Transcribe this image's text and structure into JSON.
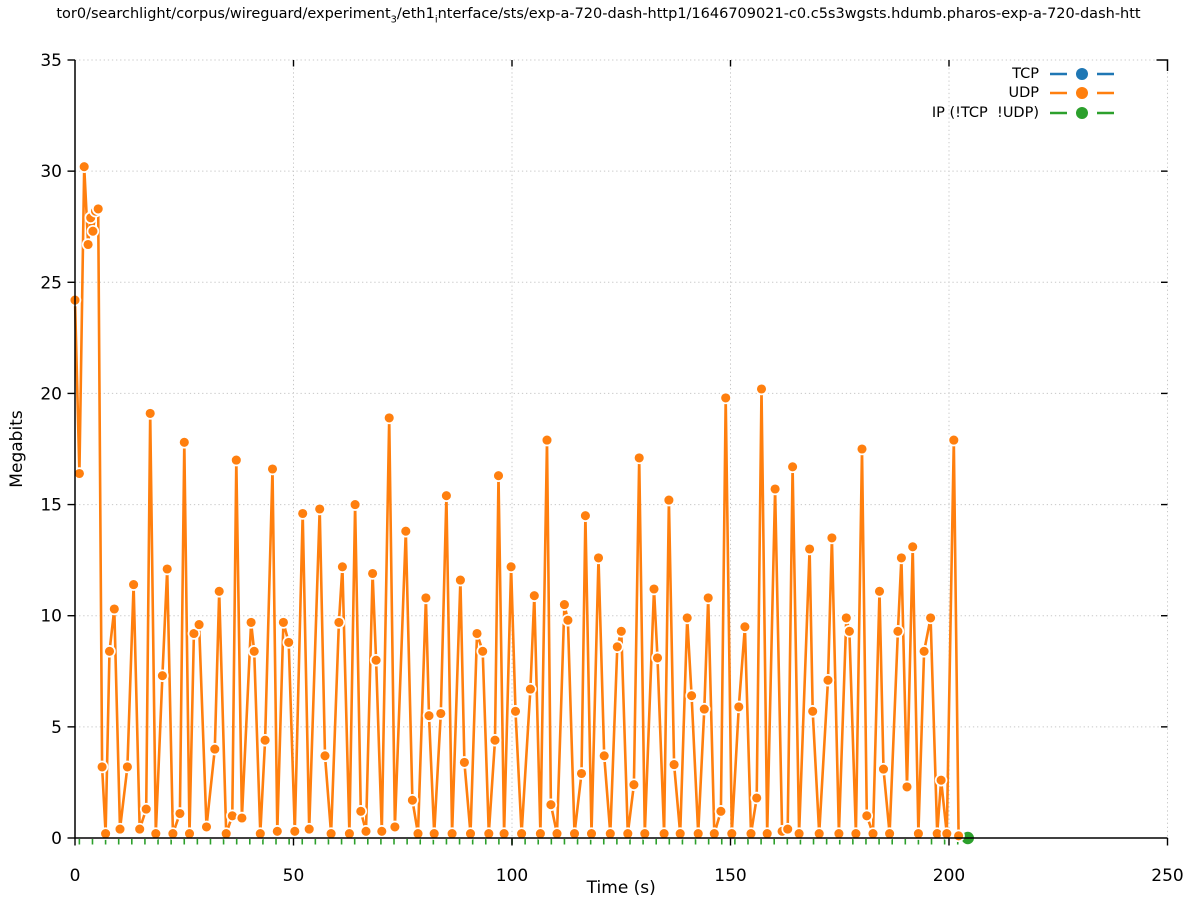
{
  "title": {
    "segments": [
      {
        "text": "tor0/searchlight/corpus/wireguard/experiment"
      },
      {
        "text": "3"
      },
      {
        "text": "/eth1"
      },
      {
        "text": "i"
      },
      {
        "text": "nterface/sts/exp-a-720-dash-http1/1646709021-c0.c5s3wgsts.hdumb.pharos-exp-a-720-dash-htt"
      }
    ]
  },
  "legend": {
    "items": [
      {
        "label": "TCP",
        "color": "#1f77b4"
      },
      {
        "label": "UDP",
        "color": "#ff7f0e"
      },
      {
        "label": "IP (!TCP  !UDP)",
        "color": "#2ca02c"
      }
    ]
  },
  "axes": {
    "xlabel": "Time (s)",
    "ylabel": "Megabits"
  },
  "colors": {
    "background": "#ffffff",
    "grid": "#c8c8c8",
    "axis": "#000000",
    "tcp": "#1f77b4",
    "udp": "#ff7f0e",
    "ip": "#2ca02c"
  },
  "chart_data": {
    "type": "line",
    "title": "tor0/searchlight/corpus/wireguard/experiment_3/eth1_interface/sts/exp-a-720-dash-http1/1646709021-c0.c5s3wgsts.hdumb.pharos-exp-a-720-dash-htt",
    "xlabel": "Time (s)",
    "ylabel": "Megabits",
    "xlim": [
      0,
      250
    ],
    "ylim": [
      0,
      35
    ],
    "xticks": [
      0,
      50,
      100,
      150,
      200,
      250
    ],
    "yticks": [
      0,
      5,
      10,
      15,
      20,
      25,
      30,
      35
    ],
    "grid": "dotted-major-both",
    "legend_position": "top-right",
    "series": [
      {
        "name": "TCP",
        "color": "#1f77b4",
        "style": "linespoints",
        "points": []
      },
      {
        "name": "UDP",
        "color": "#ff7f0e",
        "style": "linespoints",
        "points": [
          [
            0,
            24.2
          ],
          [
            1.0,
            16.4
          ],
          [
            2.1,
            30.2
          ],
          [
            3.0,
            26.7
          ],
          [
            3.6,
            27.9
          ],
          [
            4.1,
            27.3
          ],
          [
            4.7,
            28.2
          ],
          [
            5.3,
            28.3
          ],
          [
            6.2,
            3.2
          ],
          [
            7.0,
            0.2
          ],
          [
            7.9,
            8.4
          ],
          [
            9.0,
            10.3
          ],
          [
            10.3,
            0.4
          ],
          [
            12.0,
            3.2
          ],
          [
            13.4,
            11.4
          ],
          [
            14.8,
            0.4
          ],
          [
            16.3,
            1.3
          ],
          [
            17.2,
            19.1
          ],
          [
            18.5,
            0.2
          ],
          [
            20.0,
            7.3
          ],
          [
            21.1,
            12.1
          ],
          [
            22.4,
            0.2
          ],
          [
            24.0,
            1.1
          ],
          [
            25.0,
            17.8
          ],
          [
            26.2,
            0.2
          ],
          [
            27.2,
            9.2
          ],
          [
            28.4,
            9.6
          ],
          [
            30.1,
            0.5
          ],
          [
            32.0,
            4.0
          ],
          [
            33.0,
            11.1
          ],
          [
            34.6,
            0.2
          ],
          [
            36.0,
            1.0
          ],
          [
            36.9,
            17.0
          ],
          [
            38.2,
            0.9
          ],
          [
            40.3,
            9.7
          ],
          [
            41.0,
            8.4
          ],
          [
            42.4,
            0.2
          ],
          [
            43.5,
            4.4
          ],
          [
            45.2,
            16.6
          ],
          [
            46.3,
            0.3
          ],
          [
            47.7,
            9.7
          ],
          [
            48.9,
            8.8
          ],
          [
            50.3,
            0.3
          ],
          [
            52.1,
            14.6
          ],
          [
            53.6,
            0.4
          ],
          [
            56.0,
            14.8
          ],
          [
            57.2,
            3.7
          ],
          [
            58.6,
            0.2
          ],
          [
            60.4,
            9.7
          ],
          [
            61.2,
            12.2
          ],
          [
            62.8,
            0.2
          ],
          [
            64.1,
            15.0
          ],
          [
            65.4,
            1.2
          ],
          [
            66.6,
            0.3
          ],
          [
            68.1,
            11.9
          ],
          [
            68.9,
            8.0
          ],
          [
            70.2,
            0.3
          ],
          [
            71.9,
            18.9
          ],
          [
            73.2,
            0.5
          ],
          [
            75.7,
            13.8
          ],
          [
            77.2,
            1.7
          ],
          [
            78.5,
            0.2
          ],
          [
            80.3,
            10.8
          ],
          [
            81.0,
            5.5
          ],
          [
            82.2,
            0.2
          ],
          [
            83.7,
            5.6
          ],
          [
            85.0,
            15.4
          ],
          [
            86.3,
            0.2
          ],
          [
            88.2,
            11.6
          ],
          [
            89.1,
            3.4
          ],
          [
            90.5,
            0.2
          ],
          [
            92.0,
            9.2
          ],
          [
            93.3,
            8.4
          ],
          [
            94.7,
            0.2
          ],
          [
            96.1,
            4.4
          ],
          [
            96.9,
            16.3
          ],
          [
            98.2,
            0.2
          ],
          [
            99.8,
            12.2
          ],
          [
            100.8,
            5.7
          ],
          [
            102.2,
            0.2
          ],
          [
            104.2,
            6.7
          ],
          [
            105.1,
            10.9
          ],
          [
            106.5,
            0.2
          ],
          [
            108.0,
            17.9
          ],
          [
            108.9,
            1.5
          ],
          [
            110.3,
            0.2
          ],
          [
            112.0,
            10.5
          ],
          [
            112.8,
            9.8
          ],
          [
            114.3,
            0.2
          ],
          [
            115.9,
            2.9
          ],
          [
            116.8,
            14.5
          ],
          [
            118.2,
            0.2
          ],
          [
            119.8,
            12.6
          ],
          [
            121.1,
            3.7
          ],
          [
            122.5,
            0.2
          ],
          [
            124.1,
            8.6
          ],
          [
            125.0,
            9.3
          ],
          [
            126.5,
            0.2
          ],
          [
            127.9,
            2.4
          ],
          [
            129.1,
            17.1
          ],
          [
            130.4,
            0.2
          ],
          [
            132.5,
            11.2
          ],
          [
            133.3,
            8.1
          ],
          [
            134.8,
            0.2
          ],
          [
            135.9,
            15.2
          ],
          [
            137.1,
            3.3
          ],
          [
            138.5,
            0.2
          ],
          [
            140.1,
            9.9
          ],
          [
            141.1,
            6.4
          ],
          [
            142.6,
            0.2
          ],
          [
            144.0,
            5.8
          ],
          [
            144.9,
            10.8
          ],
          [
            146.3,
            0.2
          ],
          [
            147.8,
            1.2
          ],
          [
            148.9,
            19.8
          ],
          [
            150.3,
            0.2
          ],
          [
            151.9,
            5.9
          ],
          [
            153.3,
            9.5
          ],
          [
            154.7,
            0.2
          ],
          [
            156.0,
            1.8
          ],
          [
            157.1,
            20.2
          ],
          [
            158.4,
            0.2
          ],
          [
            160.2,
            15.7
          ],
          [
            161.8,
            0.3
          ],
          [
            163.1,
            0.4
          ],
          [
            164.2,
            16.7
          ],
          [
            165.7,
            0.2
          ],
          [
            168.1,
            13.0
          ],
          [
            168.8,
            5.7
          ],
          [
            170.3,
            0.2
          ],
          [
            172.3,
            7.1
          ],
          [
            173.2,
            13.5
          ],
          [
            174.8,
            0.2
          ],
          [
            176.5,
            9.9
          ],
          [
            177.2,
            9.3
          ],
          [
            178.7,
            0.2
          ],
          [
            180.1,
            17.5
          ],
          [
            181.2,
            1.0
          ],
          [
            182.6,
            0.2
          ],
          [
            184.1,
            11.1
          ],
          [
            185.0,
            3.1
          ],
          [
            186.4,
            0.2
          ],
          [
            188.3,
            9.3
          ],
          [
            189.1,
            12.6
          ],
          [
            190.4,
            2.3
          ],
          [
            191.7,
            13.1
          ],
          [
            193.0,
            0.2
          ],
          [
            194.3,
            8.4
          ],
          [
            195.8,
            9.9
          ],
          [
            197.3,
            0.2
          ],
          [
            198.2,
            2.6
          ],
          [
            199.5,
            0.2
          ],
          [
            201.1,
            17.9
          ],
          [
            202.2,
            0.1
          ]
        ]
      },
      {
        "name": "IP (!TCP  !UDP)",
        "color": "#2ca02c",
        "style": "linespoints",
        "points": [
          [
            204.3,
            0
          ]
        ],
        "baseline_ticks": {
          "t_start": 1,
          "t_end": 202,
          "step": 3
        }
      }
    ]
  }
}
